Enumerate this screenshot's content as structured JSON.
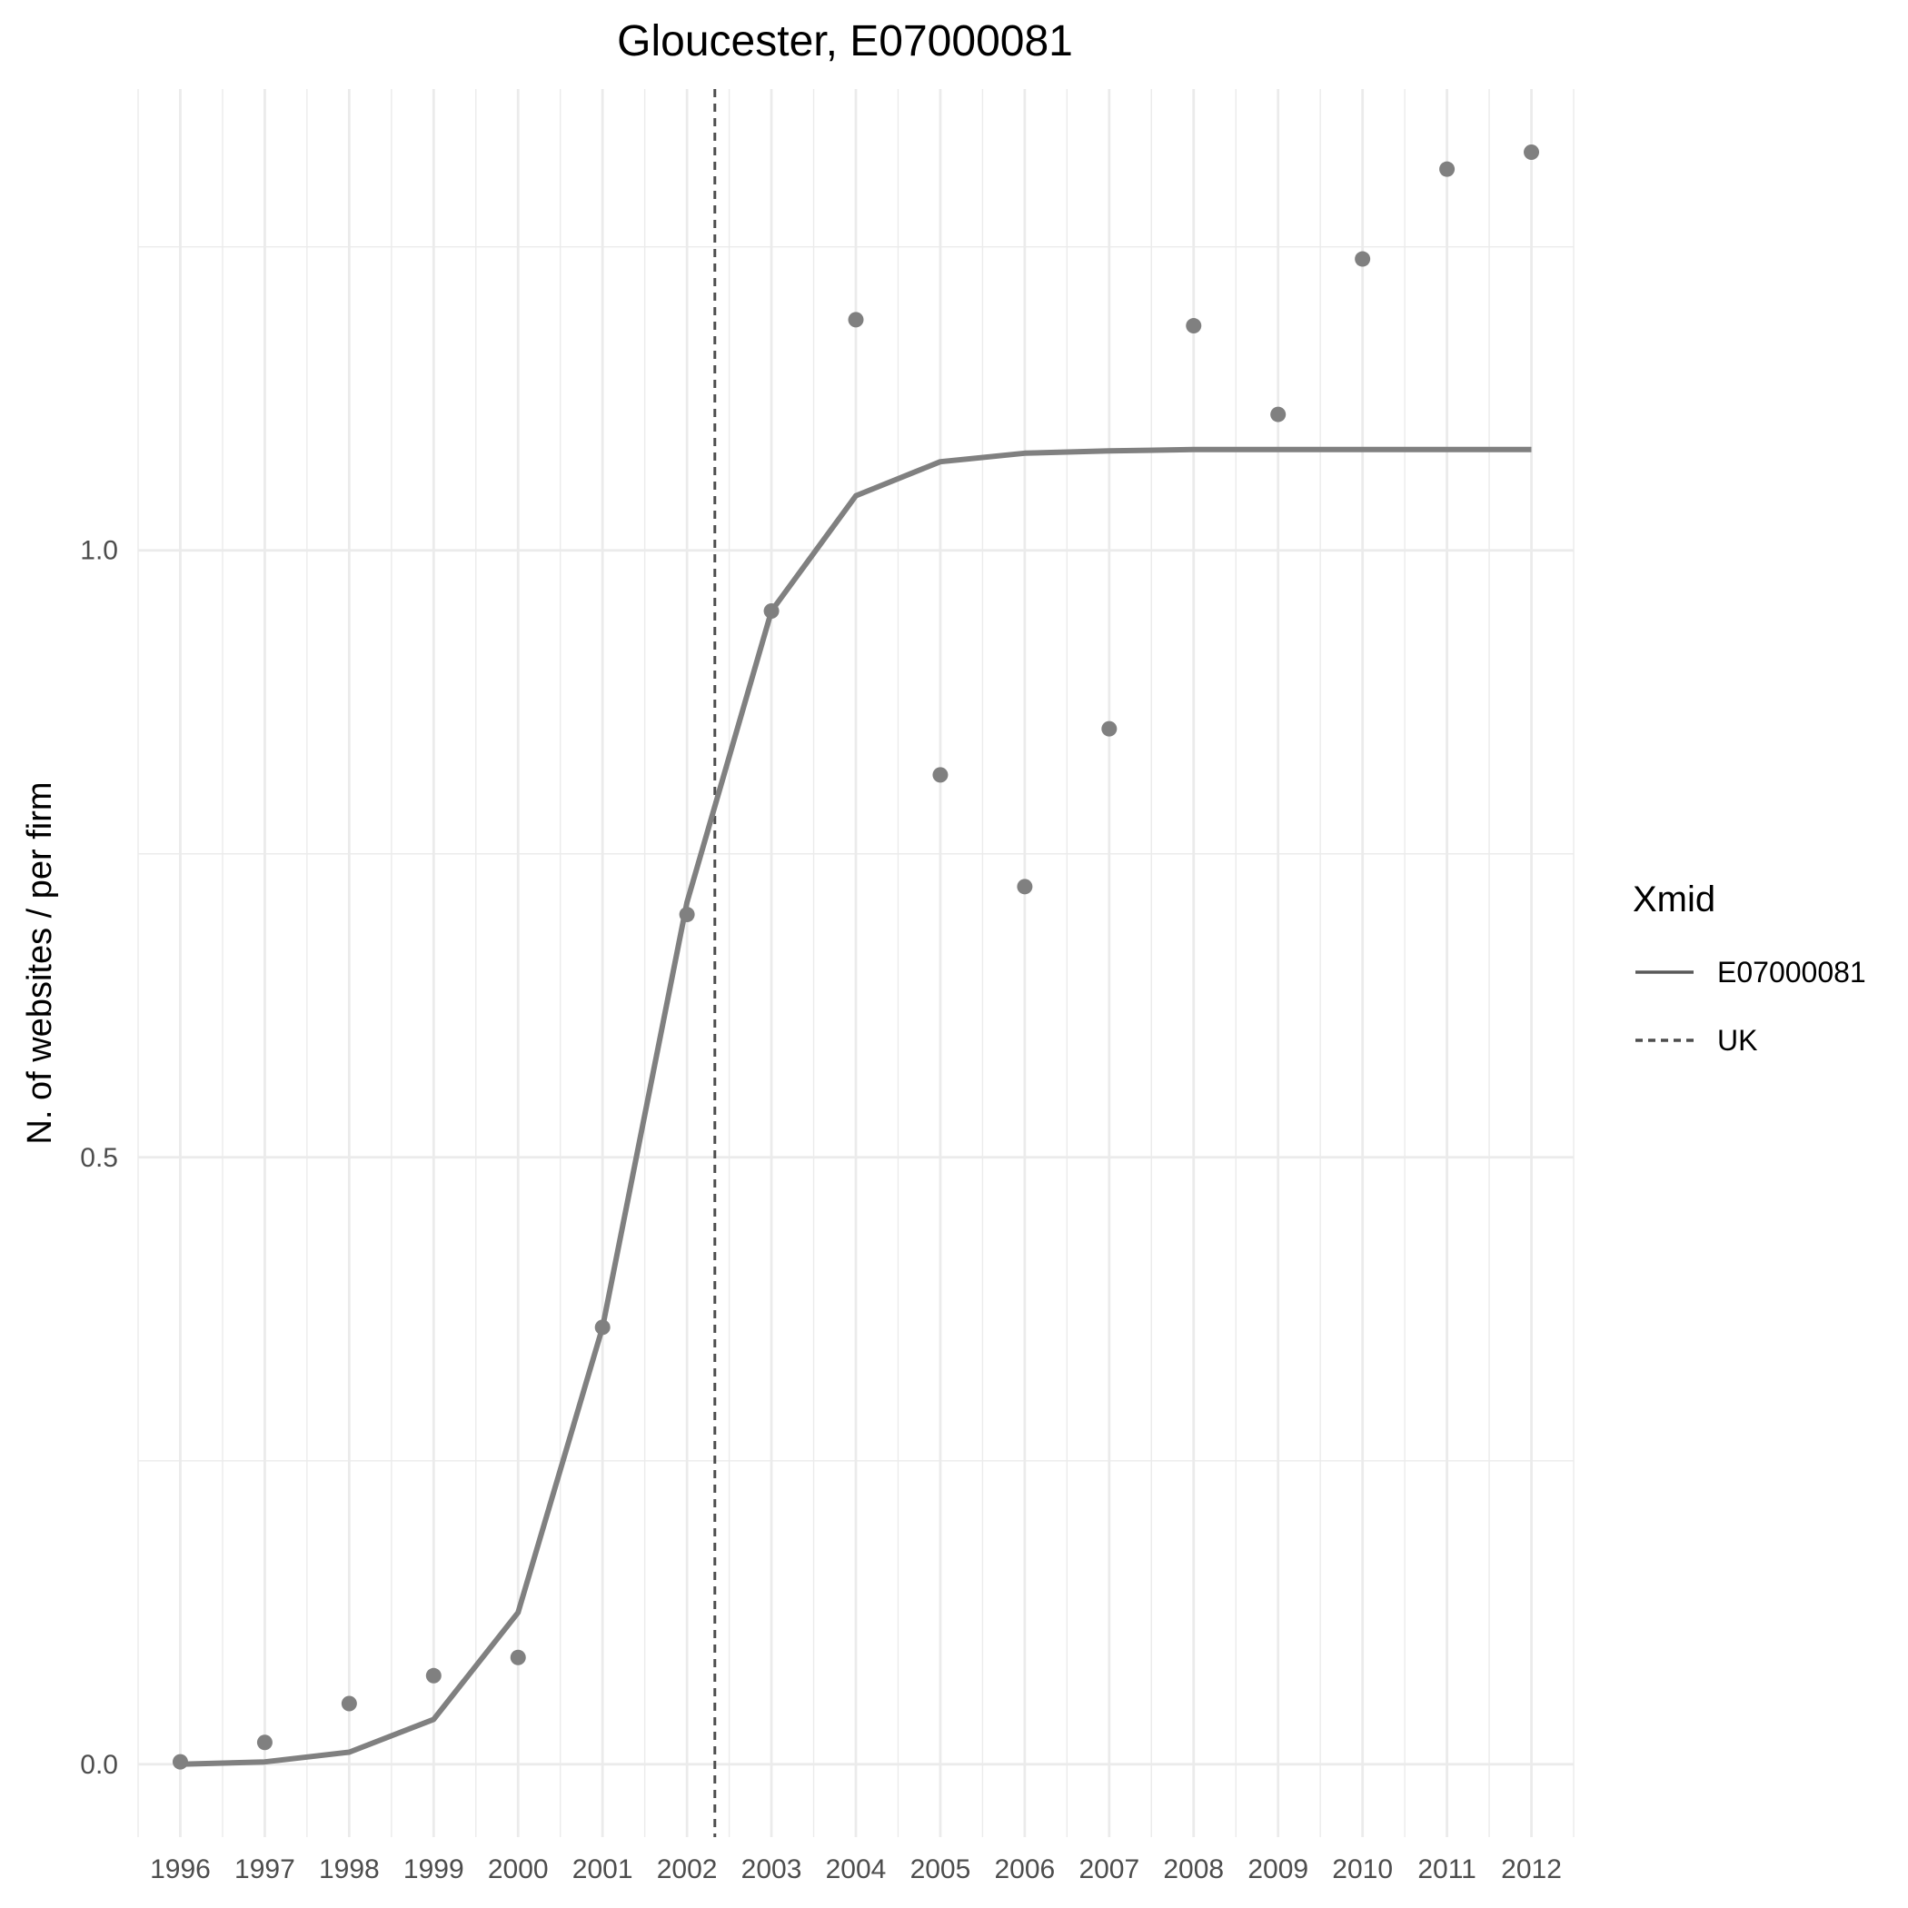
{
  "chart_data": {
    "type": "line",
    "title": "Gloucester, E07000081",
    "xlabel": "",
    "ylabel": "N. of websites / per firm",
    "x": [
      1996,
      1997,
      1998,
      1999,
      2000,
      2001,
      2002,
      2003,
      2004,
      2005,
      2006,
      2007,
      2008,
      2009,
      2010,
      2011,
      2012
    ],
    "x_tick_labels": [
      "1996",
      "1997",
      "1998",
      "1999",
      "2000",
      "2001",
      "2002",
      "2003",
      "2004",
      "2005",
      "2006",
      "2007",
      "2008",
      "2009",
      "2010",
      "2011",
      "2012"
    ],
    "y_ticks": [
      0.0,
      0.5,
      1.0
    ],
    "y_tick_labels": [
      "0.0",
      "0.5",
      "1.0"
    ],
    "xlim": [
      1995.5,
      2012.5
    ],
    "ylim": [
      -0.06,
      1.38
    ],
    "grid": true,
    "series": [
      {
        "name": "E07000081",
        "kind": "line",
        "style": "solid",
        "color": "#808080",
        "values": [
          0.0,
          0.002,
          0.01,
          0.037,
          0.125,
          0.36,
          0.71,
          0.95,
          1.045,
          1.073,
          1.08,
          1.082,
          1.083,
          1.083,
          1.083,
          1.083,
          1.083
        ]
      },
      {
        "kind": "points",
        "color": "#808080",
        "values": [
          0.002,
          0.018,
          0.05,
          0.073,
          0.088,
          0.36,
          0.7,
          0.95,
          1.19,
          0.815,
          0.723,
          0.853,
          1.185,
          1.112,
          1.24,
          1.314,
          1.328
        ]
      }
    ],
    "reference_lines": [
      {
        "name": "UK",
        "style": "dashed",
        "color": "#4d4d4d",
        "x": 2002.33
      }
    ],
    "legend": {
      "title": "Xmid",
      "placement": "right",
      "entries": [
        {
          "label": "E07000081",
          "style": "solid",
          "color": "#595959"
        },
        {
          "label": "UK",
          "style": "dashed",
          "color": "#4d4d4d"
        }
      ]
    }
  }
}
